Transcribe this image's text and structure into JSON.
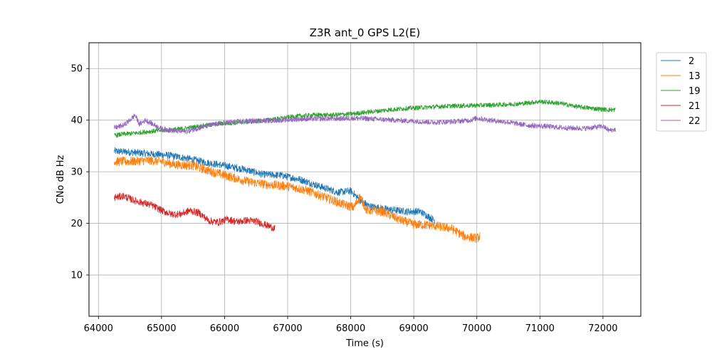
{
  "chart_data": {
    "type": "line",
    "title": "Z3R ant_0 GPS L2(E)",
    "xlabel": "Time (s)",
    "ylabel": "CNo dB Hz",
    "xlim": [
      63850,
      72600
    ],
    "ylim": [
      2,
      55
    ],
    "xticks": [
      64000,
      65000,
      66000,
      67000,
      68000,
      69000,
      70000,
      71000,
      72000
    ],
    "yticks": [
      10,
      20,
      30,
      40,
      50
    ],
    "grid": true,
    "legend_position": "upper right, outside plot area",
    "series": [
      {
        "name": "2",
        "color": "#1f77b4",
        "x": [
          64250,
          64500,
          64800,
          65100,
          65400,
          65700,
          66000,
          66300,
          66600,
          66900,
          67200,
          67500,
          67800,
          68000,
          68150,
          68300,
          68600,
          68900,
          69100,
          69330
        ],
        "y": [
          34,
          33.8,
          33.5,
          33.2,
          32.6,
          31.8,
          31.2,
          30.5,
          29.5,
          29.3,
          28.5,
          27.2,
          26,
          26.3,
          24.5,
          23.3,
          22.7,
          22.3,
          22.3,
          20.6
        ],
        "noise": 0.7
      },
      {
        "name": "13",
        "color": "#ff7f0e",
        "x": [
          64250,
          64500,
          64800,
          65000,
          65200,
          65500,
          65800,
          66100,
          66400,
          66700,
          67000,
          67300,
          67600,
          67900,
          68050,
          68150,
          68250,
          68500,
          68800,
          69000,
          69300,
          69600,
          69800,
          70000,
          70050
        ],
        "y": [
          32,
          32,
          32.2,
          32,
          31.4,
          31.2,
          30,
          29,
          28,
          27.5,
          27.2,
          26.4,
          25,
          23.6,
          23.1,
          25.2,
          22.6,
          22.3,
          20.6,
          19.8,
          19.6,
          19,
          17.5,
          17.1,
          17.5
        ],
        "noise": 0.9
      },
      {
        "name": "19",
        "color": "#2ca02c",
        "x": [
          64250,
          64400,
          64600,
          64800,
          65000,
          65300,
          65600,
          65900,
          66200,
          66500,
          66800,
          67100,
          67400,
          67700,
          68000,
          68300,
          68600,
          68900,
          69200,
          69500,
          69800,
          70100,
          70400,
          70700,
          71000,
          71300,
          71600,
          71900,
          72100,
          72200
        ],
        "y": [
          37,
          37.3,
          37.5,
          37.8,
          38,
          38.3,
          38.8,
          39.3,
          39.5,
          39.8,
          40.2,
          40.7,
          41,
          41,
          41.2,
          41.6,
          42,
          42.3,
          42.5,
          42.7,
          42.8,
          42.9,
          43,
          43.2,
          43.6,
          43.3,
          42.6,
          42.2,
          42,
          42
        ],
        "noise": 0.45
      },
      {
        "name": "21",
        "color": "#d62728",
        "x": [
          64250,
          64400,
          64550,
          64700,
          64850,
          65000,
          65150,
          65300,
          65450,
          65600,
          65750,
          65900,
          66050,
          66200,
          66350,
          66500,
          66650,
          66800
        ],
        "y": [
          25,
          25.3,
          24.5,
          24,
          23.5,
          22.5,
          21.8,
          21.8,
          22.5,
          22,
          20.5,
          20.2,
          20.8,
          20.3,
          20.6,
          20.4,
          19.7,
          19
        ],
        "noise": 0.7
      },
      {
        "name": "22",
        "color": "#9467bd",
        "x": [
          64250,
          64400,
          64500,
          64580,
          64650,
          64750,
          64850,
          65000,
          65200,
          65400,
          65600,
          65800,
          66000,
          66300,
          66600,
          66900,
          67200,
          67500,
          67800,
          68100,
          68400,
          68700,
          69000,
          69300,
          69600,
          69900,
          70000,
          70200,
          70500,
          70800,
          71100,
          71400,
          71700,
          72000,
          72100,
          72200
        ],
        "y": [
          38.5,
          39,
          40,
          41,
          39.2,
          40,
          39.3,
          38.3,
          37.9,
          37.8,
          38.5,
          39.1,
          39.5,
          39.8,
          39.9,
          40,
          40.2,
          40.3,
          40.3,
          40.4,
          40.2,
          40,
          39.8,
          39.6,
          39.7,
          40,
          40.4,
          40,
          39.6,
          39,
          38.8,
          38.5,
          38.4,
          38.8,
          38,
          38.2
        ],
        "noise": 0.5
      }
    ]
  }
}
